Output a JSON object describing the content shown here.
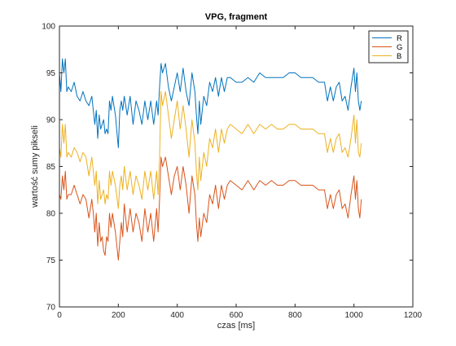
{
  "chart_data": {
    "type": "line",
    "title": "VPG, fragment",
    "xlabel": "czas [ms]",
    "ylabel": "wartość sumy pikseli",
    "xlim": [
      0,
      1200
    ],
    "ylim": [
      70,
      100
    ],
    "xticks": [
      0,
      200,
      400,
      600,
      800,
      1000,
      1200
    ],
    "yticks": [
      70,
      75,
      80,
      85,
      90,
      95,
      100
    ],
    "grid": false,
    "legend_position": "top-right",
    "series": [
      {
        "name": "R",
        "color": "#0072BD",
        "x": [
          0,
          5,
          10,
          15,
          20,
          25,
          30,
          40,
          50,
          60,
          70,
          80,
          90,
          100,
          110,
          115,
          120,
          125,
          130,
          135,
          140,
          145,
          150,
          155,
          160,
          165,
          170,
          175,
          180,
          190,
          200,
          205,
          210,
          215,
          220,
          230,
          240,
          250,
          260,
          270,
          280,
          290,
          300,
          310,
          320,
          330,
          335,
          340,
          345,
          350,
          360,
          370,
          380,
          390,
          400,
          410,
          420,
          430,
          440,
          450,
          460,
          465,
          470,
          475,
          480,
          490,
          500,
          510,
          520,
          530,
          540,
          550,
          560,
          570,
          580,
          600,
          620,
          640,
          660,
          680,
          700,
          720,
          740,
          760,
          780,
          800,
          820,
          840,
          860,
          880,
          900,
          910,
          920,
          930,
          940,
          950,
          960,
          970,
          980,
          990,
          1000,
          1005,
          1010,
          1015,
          1020,
          1025
        ],
        "values": [
          95,
          93,
          96.5,
          95,
          96.5,
          93,
          93.5,
          93,
          94,
          92.5,
          92,
          93,
          92,
          91.5,
          92.5,
          91,
          89.5,
          91,
          88,
          90.5,
          89,
          89.5,
          90,
          88.5,
          89,
          88.5,
          92,
          91,
          92.5,
          90.5,
          87,
          91,
          92,
          91,
          92.5,
          90.5,
          92.5,
          89.5,
          92,
          91,
          89.5,
          92,
          90,
          92,
          89.5,
          92,
          90.5,
          93.5,
          96,
          95,
          96,
          93.5,
          92,
          93.5,
          95,
          93,
          95.5,
          93,
          91.5,
          95,
          93,
          90.5,
          88.5,
          92,
          89.5,
          92.5,
          91.5,
          94,
          93,
          94.5,
          92.5,
          94.5,
          93,
          94.5,
          94.5,
          94,
          94,
          94.5,
          94,
          95,
          94.5,
          94.5,
          94.5,
          94.5,
          95,
          95,
          94.5,
          94.5,
          94.5,
          94,
          94,
          92,
          93.5,
          92,
          93.5,
          94,
          92,
          92.5,
          91,
          93.5,
          95.5,
          93,
          95,
          92,
          91,
          92
        ]
      },
      {
        "name": "G",
        "color": "#D95319",
        "x": [
          0,
          5,
          10,
          15,
          20,
          25,
          30,
          40,
          50,
          60,
          70,
          80,
          90,
          100,
          110,
          115,
          120,
          125,
          130,
          135,
          140,
          145,
          150,
          155,
          160,
          165,
          170,
          175,
          180,
          190,
          200,
          205,
          210,
          215,
          220,
          230,
          240,
          250,
          260,
          270,
          280,
          290,
          300,
          310,
          320,
          330,
          335,
          340,
          345,
          350,
          360,
          370,
          380,
          390,
          400,
          410,
          420,
          430,
          440,
          450,
          460,
          465,
          470,
          475,
          480,
          490,
          500,
          510,
          520,
          530,
          540,
          550,
          560,
          570,
          580,
          600,
          620,
          640,
          660,
          680,
          700,
          720,
          740,
          760,
          780,
          800,
          820,
          840,
          860,
          880,
          900,
          910,
          920,
          930,
          940,
          950,
          960,
          970,
          980,
          990,
          1000,
          1005,
          1010,
          1015,
          1020,
          1025
        ],
        "values": [
          82,
          81.5,
          84,
          82.5,
          84.5,
          81.5,
          82,
          82,
          83,
          82,
          81,
          82,
          81.5,
          79.5,
          81.5,
          80,
          78,
          80,
          76.5,
          79,
          77,
          77.5,
          76,
          75.5,
          77.5,
          77,
          80,
          78.5,
          80,
          78,
          75,
          77,
          79,
          77.5,
          81,
          78,
          80.5,
          78,
          80,
          79,
          77,
          80.5,
          78,
          80,
          77,
          80.5,
          78,
          81.5,
          86,
          85,
          86,
          84,
          82,
          84,
          85,
          82.5,
          85,
          83,
          80,
          84,
          82,
          79,
          77,
          79.5,
          77.5,
          80,
          79,
          82,
          81,
          83,
          80.5,
          83,
          81.5,
          83,
          83.5,
          83,
          82.5,
          83.5,
          82.5,
          83.5,
          83,
          83.5,
          83,
          83,
          83.5,
          83.5,
          83,
          83,
          83,
          82.5,
          82.5,
          80.5,
          82,
          80.5,
          82,
          82.5,
          80.5,
          81,
          79.5,
          82,
          84,
          81.5,
          83.5,
          80.5,
          79.5,
          81.5
        ]
      },
      {
        "name": "B",
        "color": "#EDB120",
        "x": [
          0,
          5,
          10,
          15,
          20,
          25,
          30,
          40,
          50,
          60,
          70,
          80,
          90,
          100,
          110,
          115,
          120,
          125,
          130,
          135,
          140,
          145,
          150,
          155,
          160,
          165,
          170,
          175,
          180,
          190,
          200,
          205,
          210,
          215,
          220,
          230,
          240,
          250,
          260,
          270,
          280,
          290,
          300,
          310,
          320,
          330,
          335,
          340,
          345,
          350,
          360,
          370,
          380,
          390,
          400,
          410,
          420,
          430,
          440,
          450,
          460,
          465,
          470,
          475,
          480,
          490,
          500,
          510,
          520,
          530,
          540,
          550,
          560,
          570,
          580,
          600,
          620,
          640,
          660,
          680,
          700,
          720,
          740,
          760,
          780,
          800,
          820,
          840,
          860,
          880,
          900,
          910,
          920,
          930,
          940,
          950,
          960,
          970,
          980,
          990,
          1000,
          1005,
          1010,
          1015,
          1020,
          1025
        ],
        "values": [
          87,
          86,
          89.5,
          87.5,
          89.5,
          86,
          86.5,
          86,
          87,
          86.5,
          85.5,
          86.5,
          86,
          84,
          86,
          84.5,
          83,
          84.5,
          81,
          83.5,
          81.5,
          82,
          82.5,
          81,
          82,
          81.5,
          84.5,
          83,
          84.5,
          83,
          80.5,
          83,
          84,
          82.5,
          85,
          82.5,
          84.5,
          82,
          84,
          83,
          81.5,
          84.5,
          82.5,
          84.5,
          81.5,
          84.5,
          82,
          86,
          93,
          91.5,
          93,
          90.5,
          88,
          90,
          92,
          89,
          91.5,
          89,
          86,
          90,
          87.5,
          84.5,
          82.5,
          86,
          83.5,
          86.5,
          85,
          88,
          87,
          89,
          86.5,
          89,
          87.5,
          89,
          89.5,
          89,
          88.5,
          89.5,
          88.5,
          89.5,
          89,
          89.5,
          89,
          89,
          89.5,
          89.5,
          89,
          89,
          89,
          88.5,
          88.5,
          86.5,
          88,
          86.5,
          88,
          88.5,
          86.5,
          87,
          86,
          88,
          90.5,
          87.5,
          90,
          86.5,
          86,
          87.5
        ]
      }
    ]
  }
}
